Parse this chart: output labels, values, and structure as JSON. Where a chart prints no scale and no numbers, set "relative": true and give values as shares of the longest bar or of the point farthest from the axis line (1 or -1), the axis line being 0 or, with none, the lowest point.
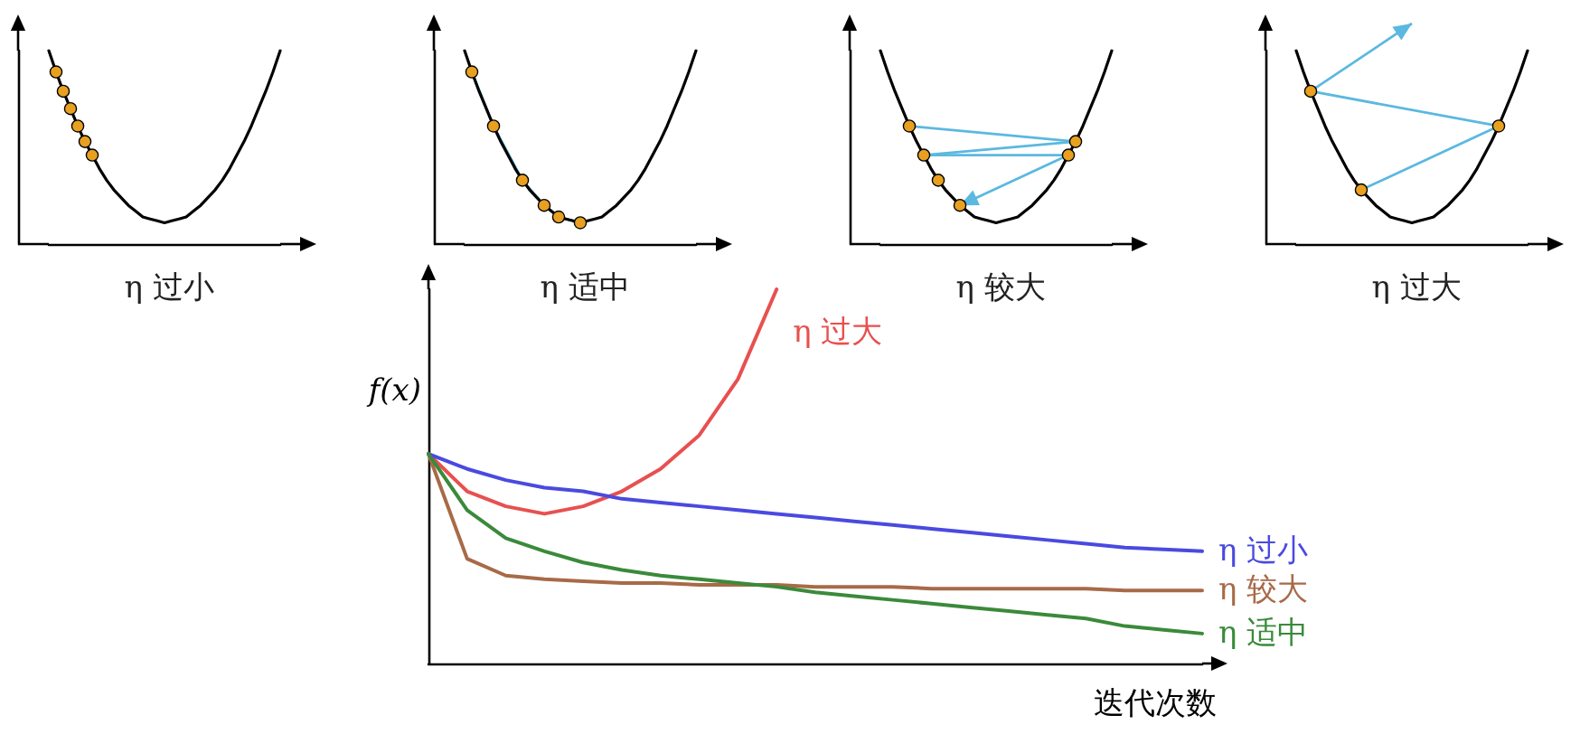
{
  "chart_data": [
    {
      "type": "line",
      "relative": true,
      "title": "η 过小",
      "marker": "none",
      "categories": [
        null,
        null,
        null,
        null,
        null,
        null,
        null,
        null,
        null,
        null,
        null,
        null,
        null,
        null,
        null,
        null,
        null,
        null,
        null,
        null,
        null,
        null,
        null,
        null,
        null,
        null,
        null,
        null,
        null,
        null,
        null,
        null,
        null
      ],
      "series": [
        {
          "color": "#000000",
          "values": [
            1.0,
            0.89,
            0.79,
            0.7,
            0.61,
            0.53,
            0.46,
            0.39,
            0.33,
            0.28,
            0.24,
            0.2,
            0.17,
            0.14,
            0.13,
            0.12,
            0.11,
            0.12,
            0.13,
            0.14,
            0.17,
            0.2,
            0.24,
            0.28,
            0.33,
            0.39,
            0.46,
            0.53,
            0.61,
            0.7,
            0.79,
            0.89,
            1.0
          ]
        }
      ]
    },
    {
      "type": "line",
      "relative": true,
      "title": "η 适中",
      "marker": "none",
      "categories": [
        null,
        null,
        null,
        null,
        null,
        null,
        null,
        null,
        null,
        null,
        null,
        null,
        null,
        null,
        null,
        null,
        null,
        null,
        null,
        null,
        null,
        null,
        null,
        null,
        null,
        null,
        null,
        null,
        null,
        null,
        null,
        null,
        null
      ],
      "series": [
        {
          "color": "#000000",
          "values": [
            1.0,
            0.89,
            0.79,
            0.7,
            0.61,
            0.53,
            0.46,
            0.39,
            0.33,
            0.28,
            0.24,
            0.2,
            0.17,
            0.14,
            0.13,
            0.12,
            0.11,
            0.12,
            0.13,
            0.14,
            0.17,
            0.2,
            0.24,
            0.28,
            0.33,
            0.39,
            0.46,
            0.53,
            0.61,
            0.7,
            0.79,
            0.89,
            1.0
          ]
        }
      ]
    },
    {
      "type": "line",
      "relative": true,
      "title": "η 较大",
      "marker": "none",
      "categories": [
        null,
        null,
        null,
        null,
        null,
        null,
        null,
        null,
        null,
        null,
        null,
        null,
        null,
        null,
        null,
        null,
        null,
        null,
        null,
        null,
        null,
        null,
        null,
        null,
        null,
        null,
        null,
        null,
        null,
        null,
        null,
        null,
        null
      ],
      "series": [
        {
          "color": "#000000",
          "values": [
            1.0,
            0.89,
            0.79,
            0.7,
            0.61,
            0.53,
            0.46,
            0.39,
            0.33,
            0.28,
            0.24,
            0.2,
            0.17,
            0.14,
            0.13,
            0.12,
            0.11,
            0.12,
            0.13,
            0.14,
            0.17,
            0.2,
            0.24,
            0.28,
            0.33,
            0.39,
            0.46,
            0.53,
            0.61,
            0.7,
            0.79,
            0.89,
            1.0
          ]
        }
      ]
    },
    {
      "type": "line",
      "relative": true,
      "title": "η 过大",
      "marker": "none",
      "categories": [
        null,
        null,
        null,
        null,
        null,
        null,
        null,
        null,
        null,
        null,
        null,
        null,
        null,
        null,
        null,
        null,
        null,
        null,
        null,
        null,
        null,
        null,
        null,
        null,
        null,
        null,
        null,
        null,
        null,
        null,
        null,
        null,
        null
      ],
      "series": [
        {
          "color": "#000000",
          "values": [
            1.0,
            0.89,
            0.79,
            0.7,
            0.61,
            0.53,
            0.46,
            0.39,
            0.33,
            0.28,
            0.24,
            0.2,
            0.17,
            0.14,
            0.13,
            0.12,
            0.11,
            0.12,
            0.13,
            0.14,
            0.17,
            0.2,
            0.24,
            0.28,
            0.33,
            0.39,
            0.46,
            0.53,
            0.61,
            0.7,
            0.79,
            0.89,
            1.0
          ]
        }
      ]
    },
    {
      "type": "line",
      "relative": true,
      "xlabel": "迭代次数",
      "ylabel": "f(x)",
      "marker": "none",
      "legend": false,
      "categories": [
        null,
        null,
        null,
        null,
        null,
        null,
        null,
        null,
        null,
        null,
        null,
        null,
        null,
        null,
        null,
        null,
        null,
        null,
        null,
        null,
        null
      ],
      "series": [
        {
          "name": "η 过大",
          "color": "#e85050",
          "values": [
            0.56,
            0.46,
            0.42,
            0.4,
            0.42,
            0.46,
            0.52,
            0.61,
            0.76,
            1.0,
            null,
            null,
            null,
            null,
            null,
            null,
            null,
            null,
            null,
            null,
            null
          ]
        },
        {
          "name": "η 过小",
          "color": "#4a4ae0",
          "values": [
            0.56,
            0.52,
            0.49,
            0.47,
            0.46,
            0.44,
            0.43,
            0.42,
            0.41,
            0.4,
            0.39,
            0.38,
            0.37,
            0.36,
            0.35,
            0.34,
            0.33,
            0.32,
            0.31,
            0.305,
            0.3
          ]
        },
        {
          "name": "η 较大",
          "color": "#a86a48",
          "values": [
            0.56,
            0.28,
            0.235,
            0.225,
            0.22,
            0.215,
            0.215,
            0.21,
            0.21,
            0.21,
            0.205,
            0.205,
            0.205,
            0.2,
            0.2,
            0.2,
            0.2,
            0.2,
            0.195,
            0.195,
            0.195
          ]
        },
        {
          "name": "η 适中",
          "color": "#3a8a3a",
          "values": [
            0.56,
            0.41,
            0.335,
            0.3,
            0.27,
            0.25,
            0.235,
            0.225,
            0.215,
            0.205,
            0.19,
            0.18,
            0.17,
            0.16,
            0.15,
            0.14,
            0.13,
            0.12,
            0.1,
            0.09,
            0.08
          ]
        }
      ]
    }
  ]
}
